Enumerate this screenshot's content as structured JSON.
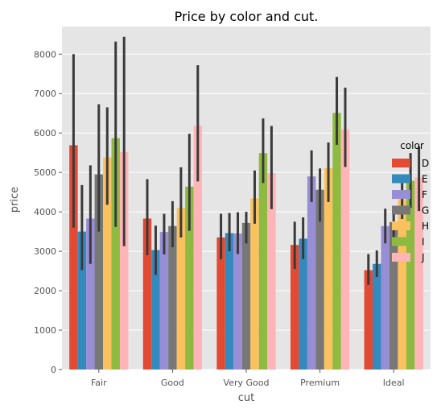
{
  "chart_data": {
    "type": "bar",
    "title": "Price by color and cut.",
    "xlabel": "cut",
    "ylabel": "price",
    "categories": [
      "Fair",
      "Good",
      "Very Good",
      "Premium",
      "Ideal"
    ],
    "ylim": [
      0,
      8700
    ],
    "yticks": [
      0,
      1000,
      2000,
      3000,
      4000,
      5000,
      6000,
      7000,
      8000
    ],
    "grid": true,
    "legend": {
      "title": "color",
      "position": "right"
    },
    "series": [
      {
        "name": "D",
        "color": "#E24A33",
        "values": [
          5690,
          3830,
          3350,
          3160,
          2520
        ],
        "ci_low": [
          3600,
          2900,
          2800,
          2550,
          2150
        ],
        "ci_high": [
          8000,
          4830,
          3950,
          3750,
          2930
        ]
      },
      {
        "name": "E",
        "color": "#348ABD",
        "values": [
          3500,
          3030,
          3460,
          3320,
          2680
        ],
        "ci_low": [
          2520,
          2400,
          3000,
          2800,
          2350
        ],
        "ci_high": [
          4680,
          3650,
          3970,
          3860,
          3020
        ]
      },
      {
        "name": "F",
        "color": "#988ED5",
        "values": [
          3830,
          3490,
          3450,
          4900,
          3640
        ],
        "ci_low": [
          2680,
          2920,
          2930,
          4250,
          3200
        ],
        "ci_high": [
          5180,
          3950,
          3990,
          5560,
          4080
        ]
      },
      {
        "name": "G",
        "color": "#777777",
        "values": [
          4950,
          3640,
          3720,
          4560,
          3740
        ],
        "ci_low": [
          3500,
          3100,
          3200,
          3750,
          3350
        ],
        "ci_high": [
          6730,
          4270,
          4000,
          5100,
          4150
        ]
      },
      {
        "name": "H",
        "color": "#FBC15E",
        "values": [
          5380,
          4100,
          4340,
          5110,
          4320
        ],
        "ci_low": [
          4180,
          3350,
          3700,
          4250,
          3820
        ],
        "ci_high": [
          6650,
          5130,
          5050,
          5760,
          4820
        ]
      },
      {
        "name": "I",
        "color": "#8EBA42",
        "values": [
          5870,
          4640,
          5490,
          6510,
          4790
        ],
        "ci_low": [
          3620,
          3520,
          4730,
          5700,
          4100
        ],
        "ci_high": [
          8320,
          5980,
          6370,
          7420,
          5490
        ]
      },
      {
        "name": "J",
        "color": "#FFB5B8",
        "values": [
          5520,
          6180,
          4990,
          6090,
          4870
        ],
        "ci_low": [
          3130,
          4770,
          4070,
          5140,
          4020
        ],
        "ci_high": [
          8440,
          7720,
          6180,
          7150,
          5660
        ]
      }
    ]
  }
}
